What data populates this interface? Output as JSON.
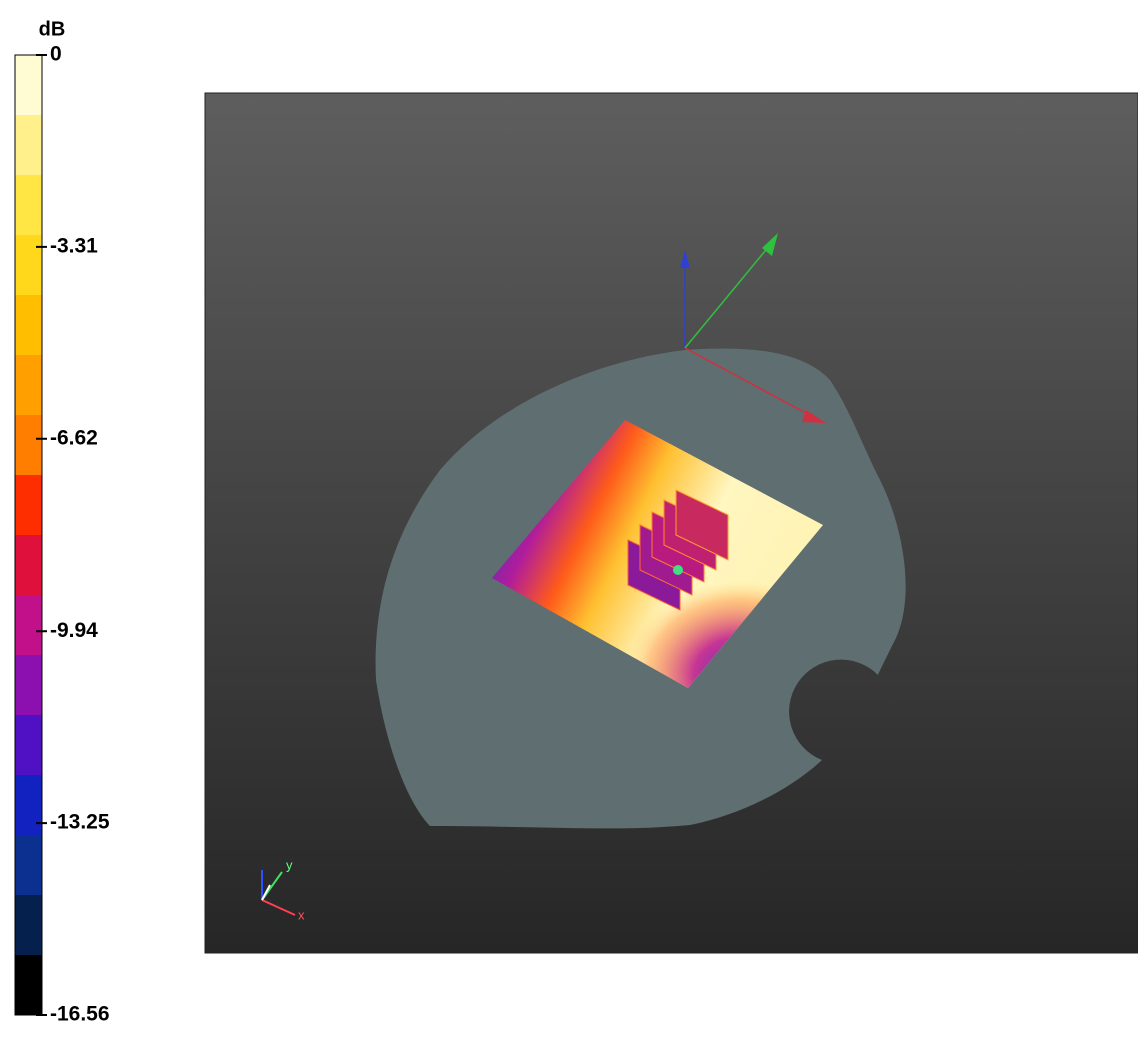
{
  "colorbar": {
    "title": "dB",
    "lim": [
      0,
      -16.56
    ],
    "ticks": [
      0,
      -3.31,
      -6.62,
      -9.94,
      -13.25,
      -16.56
    ],
    "band_colors": [
      "#fffbd2",
      "#fff08c",
      "#ffe645",
      "#ffd81c",
      "#ffbe00",
      "#ffa000",
      "#ff7e00",
      "#ff2e00",
      "#e0103c",
      "#c2108a",
      "#8c10b0",
      "#5010c4",
      "#1222c0",
      "#0c3090",
      "#06204e",
      "#000000"
    ]
  },
  "view": {
    "triad_labels": [
      "y",
      "x"
    ]
  }
}
